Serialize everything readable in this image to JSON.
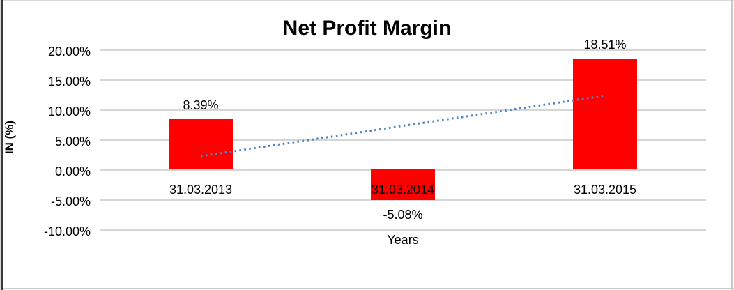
{
  "chart_data": {
    "type": "bar",
    "title": "Net Profit Margin",
    "xlabel": "Years",
    "ylabel": "IN (%)",
    "categories": [
      "31.03.2013",
      "31.03.2014",
      "31.03.2015"
    ],
    "values": [
      8.39,
      -5.08,
      18.51
    ],
    "data_labels": [
      "8.39%",
      "-5.08%",
      "18.51%"
    ],
    "ytick_labels": [
      "20.00%",
      "15.00%",
      "10.00%",
      "5.00%",
      "0.00%",
      "-5.00%",
      "-10.00%"
    ],
    "ylim": [
      -10,
      20
    ],
    "ytick_step": 5,
    "grid": true,
    "legend": "none",
    "bar_color": "#ff0000",
    "gridline_color": "#d6d6d6",
    "text_color": "#000000",
    "trendline": {
      "type": "linear",
      "style": "dotted",
      "color": "#4d85c6",
      "start_pct": 2.2,
      "end_pct": 12.3
    }
  }
}
